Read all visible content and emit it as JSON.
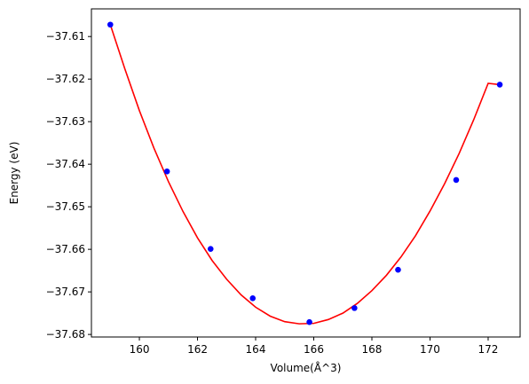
{
  "chart_data": {
    "type": "scatter",
    "xlabel": "Volume(Å^3)",
    "ylabel": "Energy (eV)",
    "xlim": [
      158.35,
      173.1
    ],
    "ylim": [
      -37.6806,
      -37.6035
    ],
    "xticks": [
      160,
      162,
      164,
      166,
      168,
      170,
      172
    ],
    "yticks": [
      -37.61,
      -37.62,
      -37.63,
      -37.64,
      -37.65,
      -37.66,
      -37.67,
      -37.68
    ],
    "xtick_labels": [
      "160",
      "162",
      "164",
      "166",
      "168",
      "170",
      "172"
    ],
    "ytick_labels": [
      "−37.61",
      "−37.62",
      "−37.63",
      "−37.64",
      "−37.65",
      "−37.66",
      "−37.67",
      "−37.68"
    ],
    "grid": false,
    "series": [
      {
        "kind": "points",
        "color": "#0000ff",
        "x": [
          159.0,
          160.95,
          162.45,
          163.9,
          165.85,
          167.4,
          168.9,
          170.9,
          172.4
        ],
        "y": [
          -37.6072,
          -37.6417,
          -37.6599,
          -37.6715,
          -37.6771,
          -37.6738,
          -37.6648,
          -37.6437,
          -37.6213
        ]
      },
      {
        "kind": "fit-curve",
        "color": "#ff0000",
        "x": [
          159.0,
          159.5,
          160.0,
          160.5,
          161.0,
          161.5,
          162.0,
          162.5,
          163.0,
          163.5,
          164.0,
          164.5,
          165.0,
          165.5,
          166.0,
          166.5,
          167.0,
          167.5,
          168.0,
          168.5,
          169.0,
          169.5,
          170.0,
          170.5,
          171.0,
          171.5,
          172.0,
          172.4
        ],
        "y": [
          -37.6072,
          -37.6176,
          -37.6274,
          -37.6362,
          -37.6441,
          -37.6511,
          -37.6573,
          -37.6626,
          -37.667,
          -37.6707,
          -37.6736,
          -37.6757,
          -37.677,
          -37.6775,
          -37.6774,
          -37.6765,
          -37.675,
          -37.6727,
          -37.6697,
          -37.6661,
          -37.6618,
          -37.6568,
          -37.651,
          -37.6446,
          -37.6375,
          -37.6296,
          -37.621,
          -37.6213
        ]
      }
    ]
  }
}
